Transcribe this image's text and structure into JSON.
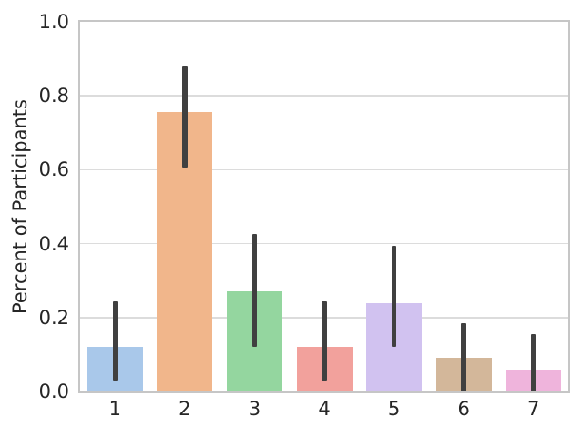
{
  "chart_data": {
    "type": "bar",
    "title": "",
    "xlabel": "",
    "ylabel": "Percent of Participants",
    "categories": [
      "1",
      "2",
      "3",
      "4",
      "5",
      "6",
      "7"
    ],
    "values": [
      0.12,
      0.755,
      0.27,
      0.12,
      0.24,
      0.09,
      0.06
    ],
    "error_low": [
      0.03,
      0.605,
      0.12,
      0.03,
      0.12,
      0.0,
      0.0
    ],
    "error_high": [
      0.245,
      0.88,
      0.425,
      0.245,
      0.395,
      0.185,
      0.155
    ],
    "bar_colors": [
      "#a9c8ea",
      "#f1b68b",
      "#94d69f",
      "#f2a19c",
      "#d1c2f0",
      "#d3b79a",
      "#efb4dc"
    ],
    "ylim": [
      0.0,
      1.0
    ],
    "yticks": [
      0.0,
      0.2,
      0.4,
      0.6,
      0.8,
      1.0
    ],
    "ytick_labels": [
      "0.0",
      "0.2",
      "0.4",
      "0.6",
      "0.8",
      "1.0"
    ],
    "grid": true,
    "legend": null,
    "error_bar_color": "#404040",
    "spine_color": "#c6c6c6",
    "grid_color": "#dcdcdc",
    "text_color": "#262626"
  }
}
